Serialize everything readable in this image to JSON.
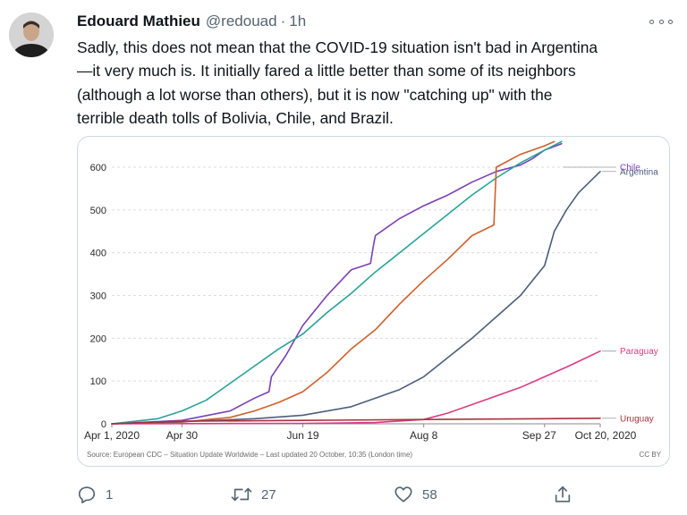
{
  "tweet": {
    "display_name": "Edouard Mathieu",
    "handle": "@redouad",
    "separator": "·",
    "time": "1h",
    "text_lines": [
      "Sadly, this does not mean that the COVID-19 situation isn't bad in Argentina",
      "—it very much is. It initially fared a little better than some of its neighbors",
      "(although a lot worse than others), but it is now \"catching up\" with the",
      "terrible death tolls of Bolivia, Chile, and Brazil."
    ],
    "avatar_icon": "profile-photo",
    "more_icon": "more-icon"
  },
  "actions": {
    "reply_count": "1",
    "retweet_count": "27",
    "like_count": "58",
    "icons": [
      "reply-icon",
      "retweet-icon",
      "like-icon",
      "share-icon"
    ]
  },
  "chart_data": {
    "type": "line",
    "title": "",
    "xlabel": "",
    "ylabel": "",
    "x_ticks": [
      "Apr 1, 2020",
      "Apr 30",
      "Jun 19",
      "Aug 8",
      "Sep 27",
      "Oct 20, 2020"
    ],
    "x_tick_days": [
      0,
      29,
      79,
      129,
      179,
      202
    ],
    "ylim": [
      0,
      600
    ],
    "y_ticks": [
      0,
      100,
      200,
      300,
      400,
      500,
      600
    ],
    "grid": true,
    "source": "Source: European CDC – Situation Update Worldwide – Last updated 20 October, 10:35 (London time)",
    "license": "CC BY",
    "series": [
      {
        "name": "Chile",
        "color": "#7b3fb5",
        "x": [
          "Apr 1, 2020",
          "Apr 30",
          "May 20",
          "May 30",
          "Jun 5",
          "Jun 6",
          "Jun 12",
          "Jun 19",
          "Jun 29",
          "Jul 9",
          "Jul 17",
          "Jul 18",
          "Jul 19",
          "Jul 29",
          "Aug 8",
          "Aug 18",
          "Aug 28",
          "Sep 7",
          "Sep 17",
          "Sep 22",
          "Sep 27",
          "Oct 4"
        ],
        "y": [
          0,
          8,
          30,
          60,
          75,
          110,
          160,
          230,
          300,
          360,
          375,
          410,
          440,
          480,
          510,
          535,
          565,
          590,
          605,
          620,
          640,
          655
        ]
      },
      {
        "name": "",
        "color": "#27a39a",
        "x": [
          "Apr 1, 2020",
          "Apr 20",
          "Apr 30",
          "May 10",
          "May 20",
          "May 30",
          "Jun 9",
          "Jun 19",
          "Jun 29",
          "Jul 9",
          "Jul 19",
          "Jul 29",
          "Aug 8",
          "Aug 18",
          "Aug 28",
          "Sep 7",
          "Sep 17",
          "Sep 27",
          "Oct 4"
        ],
        "y": [
          0,
          12,
          30,
          55,
          95,
          135,
          175,
          210,
          260,
          305,
          355,
          400,
          445,
          490,
          535,
          575,
          610,
          640,
          660
        ]
      },
      {
        "name": "",
        "color": "#d05f2a",
        "x": [
          "Apr 1, 2020",
          "Apr 30",
          "May 20",
          "May 30",
          "Jun 9",
          "Jun 19",
          "Jun 29",
          "Jul 9",
          "Jul 19",
          "Jul 29",
          "Aug 8",
          "Aug 18",
          "Aug 28",
          "Sep 6",
          "Sep 7",
          "Sep 17",
          "Sep 27",
          "Oct 1"
        ],
        "y": [
          0,
          4,
          15,
          30,
          50,
          75,
          120,
          175,
          220,
          280,
          335,
          385,
          440,
          465,
          600,
          630,
          650,
          660
        ]
      },
      {
        "name": "Argentina",
        "color": "#4b5e7e",
        "x": [
          "Apr 1, 2020",
          "Apr 30",
          "May 30",
          "Jun 19",
          "Jul 9",
          "Jul 29",
          "Aug 8",
          "Aug 18",
          "Aug 28",
          "Sep 7",
          "Sep 17",
          "Sep 27",
          "Oct 1",
          "Oct 6",
          "Oct 11",
          "Oct 20, 2020"
        ],
        "y": [
          0,
          5,
          12,
          20,
          40,
          80,
          110,
          155,
          200,
          250,
          300,
          370,
          450,
          500,
          540,
          590
        ]
      },
      {
        "name": "Paraguay",
        "color": "#d93b84",
        "x": [
          "Apr 1, 2020",
          "Jun 19",
          "Jul 19",
          "Aug 8",
          "Aug 18",
          "Aug 28",
          "Sep 7",
          "Sep 17",
          "Sep 27",
          "Oct 7",
          "Oct 20, 2020"
        ],
        "y": [
          0,
          1,
          3,
          10,
          25,
          45,
          65,
          85,
          110,
          135,
          170
        ]
      },
      {
        "name": "Uruguay",
        "color": "#a8323a",
        "x": [
          "Apr 1, 2020",
          "Apr 30",
          "Jun 19",
          "Aug 8",
          "Sep 27",
          "Oct 20, 2020"
        ],
        "y": [
          0,
          6,
          8,
          10,
          12,
          13
        ]
      }
    ]
  }
}
